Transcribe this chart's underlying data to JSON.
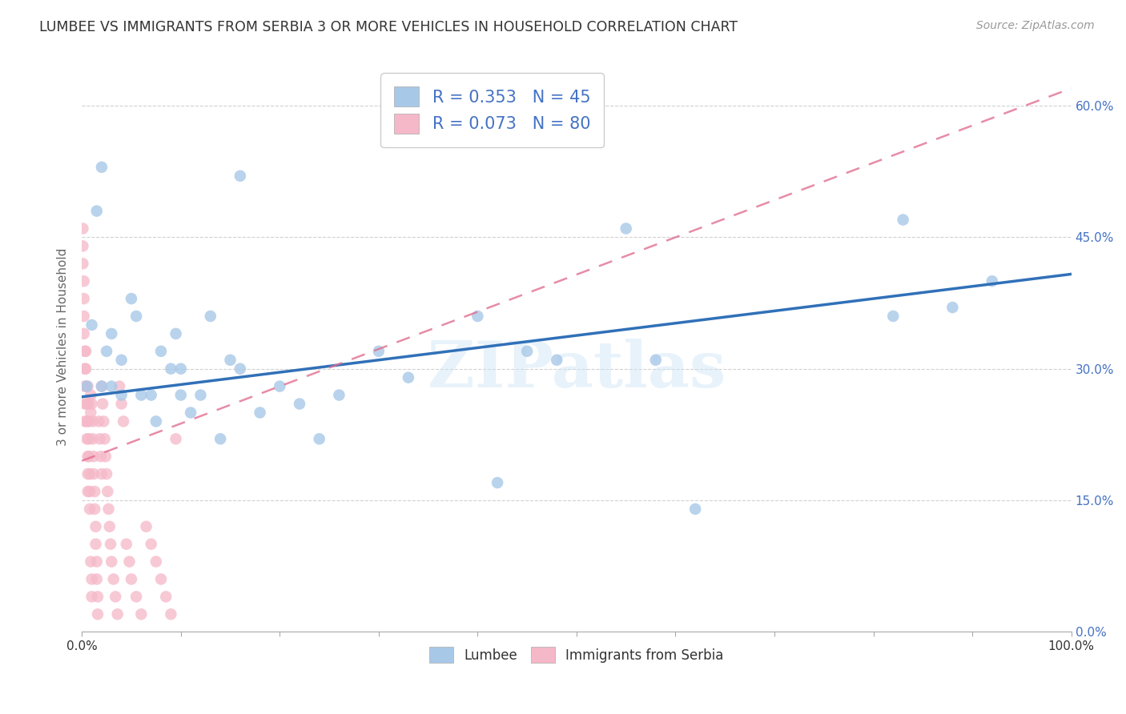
{
  "title": "LUMBEE VS IMMIGRANTS FROM SERBIA 3 OR MORE VEHICLES IN HOUSEHOLD CORRELATION CHART",
  "source": "Source: ZipAtlas.com",
  "ylabel": "3 or more Vehicles in Household",
  "xlim": [
    0,
    1.0
  ],
  "ylim": [
    0,
    0.65
  ],
  "xticks": [
    0.0,
    0.1,
    0.2,
    0.3,
    0.4,
    0.5,
    0.6,
    0.7,
    0.8,
    0.9,
    1.0
  ],
  "xticklabels_show": [
    "0.0%",
    "",
    "",
    "",
    "",
    "",
    "",
    "",
    "",
    "",
    "100.0%"
  ],
  "yticks": [
    0.0,
    0.15,
    0.3,
    0.45,
    0.6
  ],
  "yticklabels": [
    "0.0%",
    "15.0%",
    "30.0%",
    "45.0%",
    "60.0%"
  ],
  "lumbee_R": 0.353,
  "lumbee_N": 45,
  "serbia_R": 0.073,
  "serbia_N": 80,
  "lumbee_color": "#a8c8e8",
  "serbia_color": "#f5b8c8",
  "lumbee_line_color": "#3070b8",
  "serbia_line_color": "#e07090",
  "watermark": "ZIPatlas",
  "lumbee_x": [
    0.005,
    0.01,
    0.015,
    0.02,
    0.025,
    0.03,
    0.03,
    0.04,
    0.04,
    0.05,
    0.055,
    0.06,
    0.07,
    0.075,
    0.08,
    0.09,
    0.095,
    0.1,
    0.1,
    0.11,
    0.12,
    0.13,
    0.14,
    0.15,
    0.16,
    0.18,
    0.2,
    0.22,
    0.24,
    0.26,
    0.3,
    0.33,
    0.4,
    0.42,
    0.45,
    0.48,
    0.55,
    0.58,
    0.62,
    0.82,
    0.83,
    0.88,
    0.92,
    0.16,
    0.02
  ],
  "lumbee_y": [
    0.28,
    0.35,
    0.48,
    0.53,
    0.32,
    0.28,
    0.34,
    0.31,
    0.27,
    0.38,
    0.36,
    0.27,
    0.27,
    0.24,
    0.32,
    0.3,
    0.34,
    0.3,
    0.27,
    0.25,
    0.27,
    0.36,
    0.22,
    0.31,
    0.3,
    0.25,
    0.28,
    0.26,
    0.22,
    0.27,
    0.32,
    0.29,
    0.36,
    0.17,
    0.32,
    0.31,
    0.46,
    0.31,
    0.14,
    0.36,
    0.47,
    0.37,
    0.4,
    0.52,
    0.28
  ],
  "serbia_x": [
    0.001,
    0.001,
    0.001,
    0.002,
    0.002,
    0.002,
    0.002,
    0.003,
    0.003,
    0.003,
    0.003,
    0.003,
    0.004,
    0.004,
    0.004,
    0.005,
    0.005,
    0.005,
    0.006,
    0.006,
    0.006,
    0.006,
    0.007,
    0.007,
    0.007,
    0.007,
    0.008,
    0.008,
    0.008,
    0.009,
    0.009,
    0.009,
    0.01,
    0.01,
    0.01,
    0.011,
    0.011,
    0.012,
    0.012,
    0.013,
    0.013,
    0.014,
    0.014,
    0.015,
    0.015,
    0.016,
    0.016,
    0.017,
    0.018,
    0.019,
    0.02,
    0.02,
    0.021,
    0.022,
    0.023,
    0.024,
    0.025,
    0.026,
    0.027,
    0.028,
    0.029,
    0.03,
    0.032,
    0.034,
    0.036,
    0.038,
    0.04,
    0.042,
    0.045,
    0.048,
    0.05,
    0.055,
    0.06,
    0.065,
    0.07,
    0.075,
    0.08,
    0.085,
    0.09,
    0.095
  ],
  "serbia_y": [
    0.46,
    0.44,
    0.42,
    0.4,
    0.38,
    0.36,
    0.34,
    0.32,
    0.3,
    0.28,
    0.26,
    0.24,
    0.32,
    0.3,
    0.28,
    0.26,
    0.24,
    0.22,
    0.2,
    0.18,
    0.16,
    0.28,
    0.26,
    0.24,
    0.22,
    0.2,
    0.18,
    0.16,
    0.14,
    0.27,
    0.25,
    0.08,
    0.06,
    0.04,
    0.26,
    0.24,
    0.22,
    0.2,
    0.18,
    0.16,
    0.14,
    0.12,
    0.1,
    0.08,
    0.06,
    0.04,
    0.02,
    0.24,
    0.22,
    0.2,
    0.18,
    0.28,
    0.26,
    0.24,
    0.22,
    0.2,
    0.18,
    0.16,
    0.14,
    0.12,
    0.1,
    0.08,
    0.06,
    0.04,
    0.02,
    0.28,
    0.26,
    0.24,
    0.1,
    0.08,
    0.06,
    0.04,
    0.02,
    0.12,
    0.1,
    0.08,
    0.06,
    0.04,
    0.02,
    0.22
  ],
  "lumbee_line_x0": 0.0,
  "lumbee_line_y0": 0.268,
  "lumbee_line_x1": 1.0,
  "lumbee_line_y1": 0.408,
  "serbia_line_x0": 0.0,
  "serbia_line_y0": 0.195,
  "serbia_line_x1": 1.0,
  "serbia_line_y1": 0.62
}
